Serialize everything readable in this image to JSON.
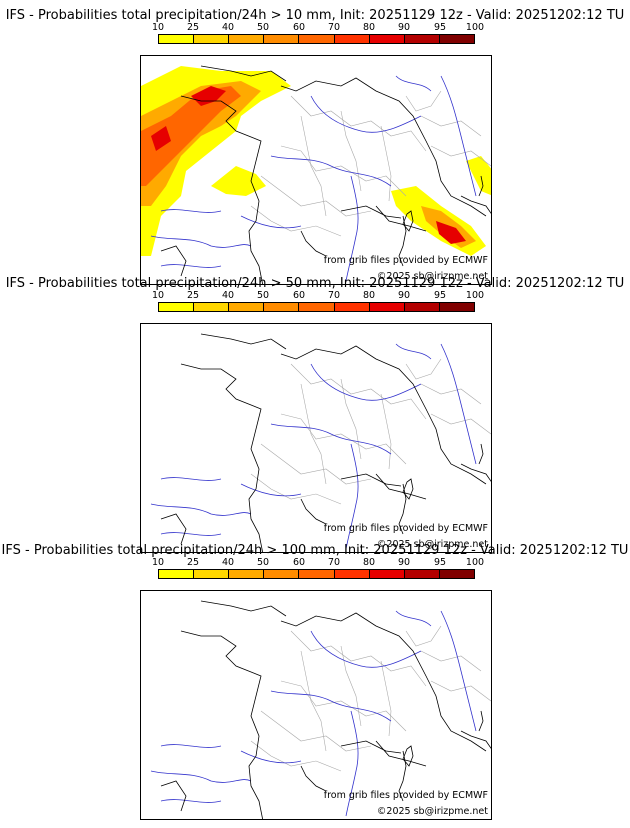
{
  "panels": [
    {
      "title": "IFS - Probabilities total precipitation/24h > 10 mm, Init: 20251129 12z - Valid: 20251202:12 TU",
      "source": "from grib files provided by ECMWF",
      "copyright": "©2025 sb@irizpme.net"
    },
    {
      "title": "IFS - Probabilities total precipitation/24h > 50 mm, Init: 20251129 12z - Valid: 20251202:12 TU",
      "source": "from grib files provided by ECMWF",
      "copyright": "©2025 sb@irizpme.net"
    },
    {
      "title": "IFS - Probabilities total precipitation/24h > 100 mm, Init: 20251129 12z - Valid: 20251202:12 TU",
      "source": "from grib files provided by ECMWF",
      "copyright": "©2025 sb@irizpme.net"
    }
  ],
  "legend": {
    "labels": [
      "10",
      "25",
      "40",
      "50",
      "60",
      "70",
      "80",
      "90",
      "95",
      "100"
    ],
    "colors": [
      "#ffff00",
      "#ffd700",
      "#ffaa00",
      "#ff8c00",
      "#ff6600",
      "#ff3300",
      "#e60000",
      "#b30000",
      "#800000"
    ]
  },
  "map_colors": {
    "coast": "#000000",
    "rivers": "#3333cc",
    "borders": "#aaaaaa"
  }
}
